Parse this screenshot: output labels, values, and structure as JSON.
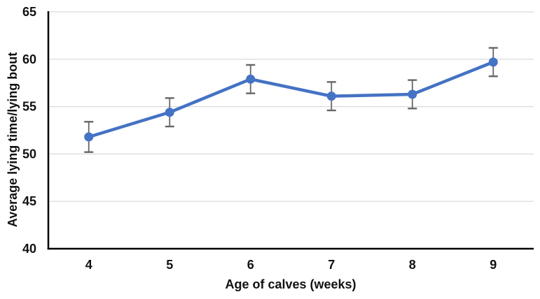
{
  "chart_data": {
    "type": "line",
    "title": "",
    "xlabel": "Age of calves (weeks)",
    "ylabel": "Average lying time/lying bout",
    "categories": [
      "4",
      "5",
      "6",
      "7",
      "8",
      "9"
    ],
    "series": [
      {
        "name": "Average lying time/lying bout",
        "values": [
          51.8,
          54.4,
          57.9,
          56.1,
          56.3,
          59.7
        ],
        "errors": [
          1.6,
          1.5,
          1.5,
          1.5,
          1.5,
          1.5
        ]
      }
    ],
    "ylim": [
      40,
      65
    ],
    "ytick_step": 5,
    "yticks": [
      "40",
      "45",
      "50",
      "55",
      "60",
      "65"
    ],
    "grid": "horizontal",
    "legend": "none",
    "error_bars": true,
    "colors": {
      "line": "#4472C4",
      "marker": "#4472C4",
      "error_bar": "#666666",
      "gridline": "#D9D9D9",
      "axis": "#000000",
      "text": "#111111",
      "background": "#FFFFFF"
    }
  }
}
